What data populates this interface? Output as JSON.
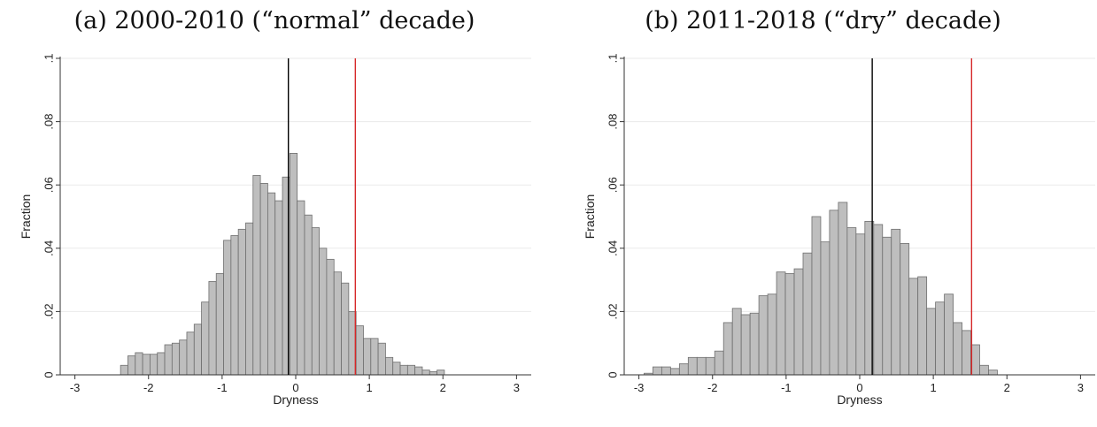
{
  "panels": [
    {
      "title": "(a) 2000-2010 (“normal” decade)"
    },
    {
      "title": "(b) 2011-2018 (“dry” decade)"
    }
  ],
  "colors": {
    "bar_fill": "#bebebe",
    "bar_stroke": "#6e6e6e",
    "mean_line": "#000000",
    "threshold_line": "#d62728",
    "grid": "#eaeaea",
    "axis": "#333333"
  },
  "chart_data": [
    {
      "type": "bar",
      "title": "(a) 2000-2010 (“normal” decade)",
      "xlabel": "Dryness",
      "ylabel": "Fraction",
      "xlim": [
        -3.2,
        3.2
      ],
      "ylim": [
        0,
        0.1
      ],
      "x_ticks": [
        -3,
        -2,
        -1,
        0,
        1,
        2,
        3
      ],
      "y_ticks": [
        0,
        0.02,
        0.04,
        0.06,
        0.08,
        0.1
      ],
      "y_tick_labels": [
        "0",
        ".02",
        ".04",
        ".06",
        ".08",
        ".1"
      ],
      "grid": true,
      "bin_start": -2.38,
      "bin_width": 0.1,
      "values": [
        0.003,
        0.006,
        0.007,
        0.0065,
        0.0065,
        0.007,
        0.0095,
        0.01,
        0.011,
        0.0135,
        0.016,
        0.023,
        0.0295,
        0.032,
        0.0425,
        0.044,
        0.046,
        0.048,
        0.063,
        0.0605,
        0.0575,
        0.055,
        0.0625,
        0.07,
        0.055,
        0.0505,
        0.0465,
        0.04,
        0.0365,
        0.0325,
        0.029,
        0.02,
        0.0155,
        0.0115,
        0.0115,
        0.01,
        0.0055,
        0.004,
        0.003,
        0.003,
        0.0025,
        0.0015,
        0.001,
        0.0015
      ],
      "vlines": [
        {
          "x": -0.1,
          "color": "#000000"
        },
        {
          "x": 0.81,
          "color": "#d62728"
        }
      ]
    },
    {
      "type": "bar",
      "title": "(b) 2011-2018 (“dry” decade)",
      "xlabel": "Dryness",
      "ylabel": "Fraction",
      "xlim": [
        -3.2,
        3.2
      ],
      "ylim": [
        0,
        0.1
      ],
      "x_ticks": [
        -3,
        -2,
        -1,
        0,
        1,
        2,
        3
      ],
      "y_ticks": [
        0,
        0.02,
        0.04,
        0.06,
        0.08,
        0.1
      ],
      "y_tick_labels": [
        "0",
        ".02",
        ".04",
        ".06",
        ".08",
        ".1"
      ],
      "grid": true,
      "bin_start": -2.93,
      "bin_width": 0.12,
      "values": [
        0.0005,
        0.0025,
        0.0025,
        0.002,
        0.0035,
        0.0055,
        0.0055,
        0.0055,
        0.0075,
        0.0165,
        0.021,
        0.019,
        0.0195,
        0.025,
        0.0255,
        0.0325,
        0.032,
        0.0335,
        0.0385,
        0.05,
        0.042,
        0.052,
        0.0545,
        0.0465,
        0.0445,
        0.0485,
        0.0475,
        0.0435,
        0.046,
        0.0415,
        0.0305,
        0.031,
        0.021,
        0.023,
        0.0255,
        0.0165,
        0.014,
        0.0095,
        0.003,
        0.0015
      ],
      "vlines": [
        {
          "x": 0.17,
          "color": "#000000"
        },
        {
          "x": 1.52,
          "color": "#d62728"
        }
      ]
    }
  ]
}
